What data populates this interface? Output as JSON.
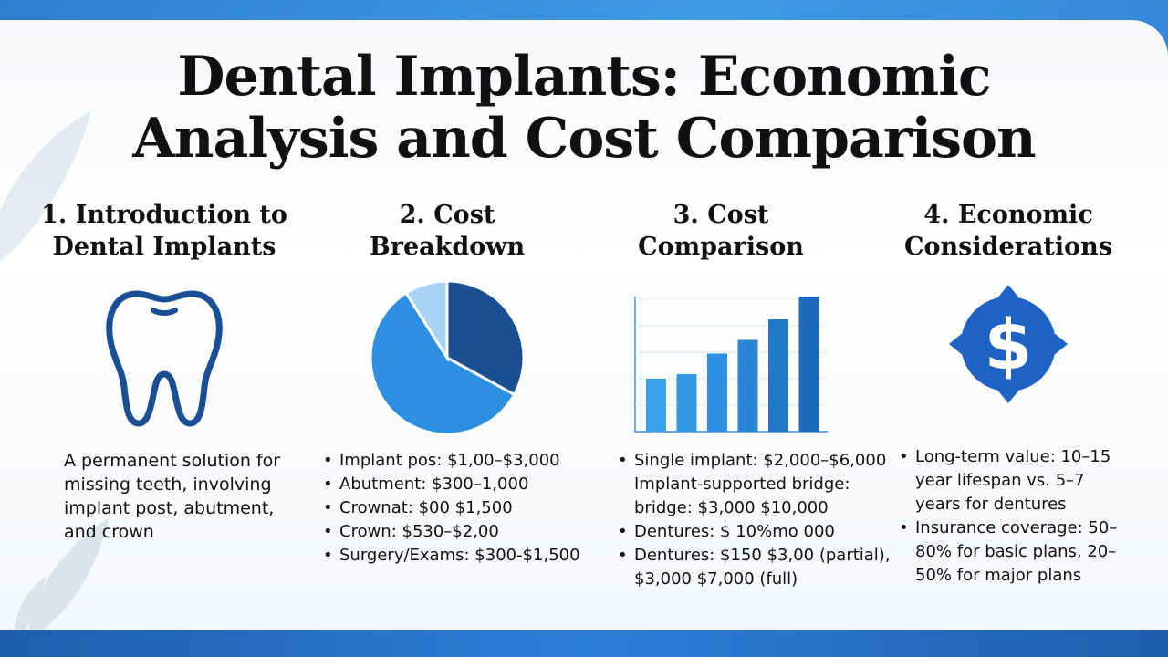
{
  "title_line1": "Dental Implants: Economic",
  "title_line2": "Analysis and Cost Comparison",
  "colors": {
    "navy": "#1a4f96",
    "blue": "#2d8fe0",
    "light_blue": "#a9d3f5",
    "dark_blue": "#1b4e92",
    "accent": "#1d62c4"
  },
  "sections": [
    {
      "title_line1": "1. Introduction to",
      "title_line2": "Dental Implants",
      "icon": "tooth-icon",
      "description": "A permanent solution for missing teeth, involving implant post, abutment, and crown"
    },
    {
      "title_line1": "2. Cost",
      "title_line2": "Breakdown",
      "icon": "pie-chart-icon",
      "bullets": [
        "Implant pos: $1,00–$3,000",
        "Abutment: $300–1,000",
        "Crownat: $00 $1,500",
        "Crown: $530–$2,00",
        "Surgery/Exams: $300-$1,500"
      ]
    },
    {
      "title_line1": "3. Cost",
      "title_line2": "Comparison",
      "icon": "bar-chart-icon",
      "bullets": [
        "Single implant: $2,000–$6,000 Implant-supported bridge: bridge: $3,000 $10,000",
        "Dentures: $ 10%mo 000",
        "Dentures: $150 $3,00 (partial), $3,000 $7,000 (full)"
      ]
    },
    {
      "title_line1": "4. Economic",
      "title_line2": "Considerations",
      "icon": "dollar-cycle-icon",
      "bullets": [
        "Long-term value: 10–15 year lifespan vs. 5–7 years for dentures",
        "Insurance coverage: 50–80% for basic plans, 20–50% for major plans"
      ]
    }
  ],
  "chart_data": [
    {
      "type": "pie",
      "values": [
        33,
        58,
        9
      ],
      "colors": [
        "#1b4e92",
        "#2d8fe0",
        "#a9d3f5"
      ]
    },
    {
      "type": "bar",
      "values": [
        1,
        1.1,
        1.55,
        1.85,
        2.3,
        2.8
      ],
      "color": "#2d8fe0"
    }
  ]
}
